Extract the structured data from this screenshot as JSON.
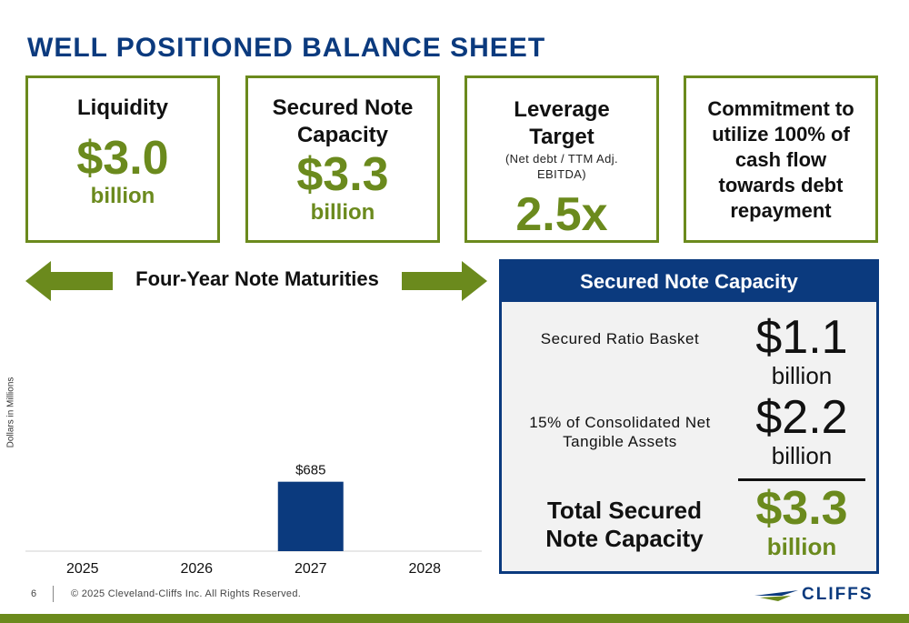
{
  "slide": {
    "title": "WELL POSITIONED BALANCE SHEET",
    "page_number": "6",
    "copyright": "© 2025 Cleveland-Cliffs Inc. All Rights Reserved.",
    "logo_text": "CLIFFS"
  },
  "colors": {
    "brand_blue": "#0b3a7e",
    "accent_green": "#6b8a1d",
    "panel_bg": "#f2f2f2"
  },
  "cards": {
    "liquidity": {
      "head": "Liquidity",
      "value": "$3.0",
      "unit": "billion"
    },
    "secured": {
      "head_line1": "Secured Note",
      "head_line2": "Capacity",
      "value": "$3.3",
      "unit": "billion"
    },
    "leverage": {
      "head_line1": "Leverage",
      "head_line2": "Target",
      "sub_line1": "(Net debt / TTM Adj.",
      "sub_line2": "EBITDA)",
      "value": "2.5x"
    },
    "commitment": {
      "line1": "Commitment to",
      "line2": "utilize 100% of",
      "line3": "cash flow",
      "line4": "towards debt",
      "line5": "repayment"
    }
  },
  "maturities": {
    "label": "Four-Year Note Maturities",
    "y_axis_label": "Dollars in Millions"
  },
  "panel": {
    "header": "Secured Note Capacity",
    "row1": {
      "label": "Secured Ratio Basket",
      "value": "$1.1",
      "unit": "billion"
    },
    "row2": {
      "label_line1": "15% of Consolidated Net",
      "label_line2": "Tangible Assets",
      "value": "$2.2",
      "unit": "billion"
    },
    "total": {
      "label_line1": "Total Secured",
      "label_line2": "Note Capacity",
      "value": "$3.3",
      "unit": "billion"
    }
  },
  "chart_data": {
    "type": "bar",
    "categories": [
      "2025",
      "2026",
      "2027",
      "2028"
    ],
    "values": [
      0,
      0,
      685,
      0
    ],
    "data_labels": [
      "",
      "",
      "$685",
      ""
    ],
    "ylabel": "Dollars in Millions",
    "ylim": [
      0,
      700
    ],
    "grid": false,
    "color": "#0b3a7e"
  }
}
